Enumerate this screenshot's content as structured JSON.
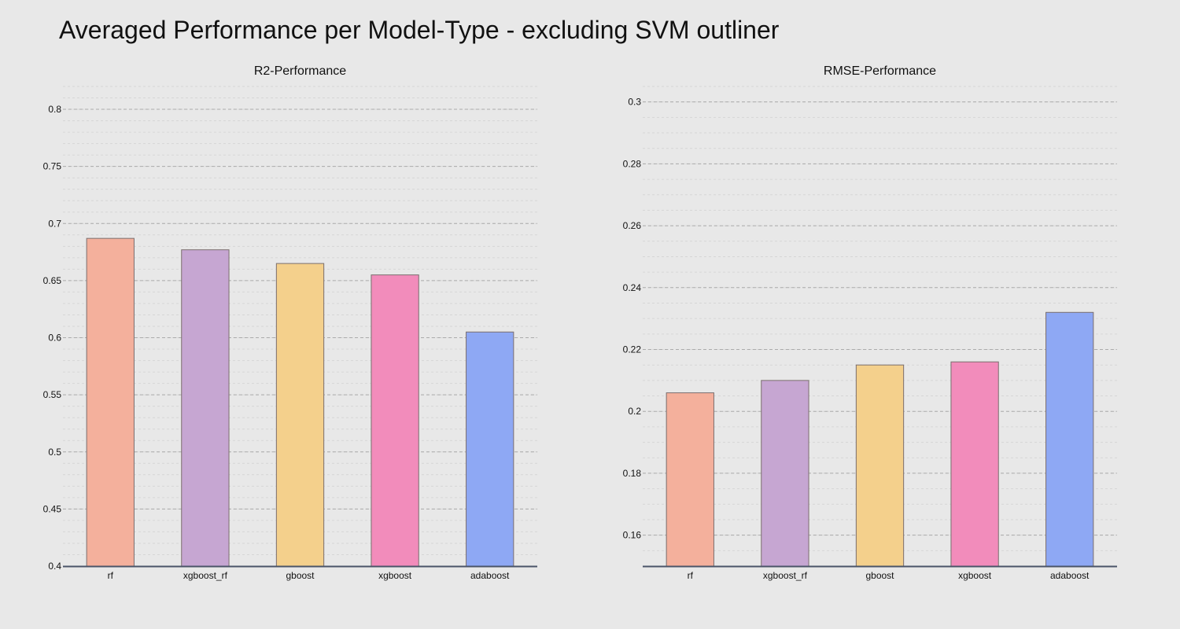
{
  "figure": {
    "title": "Averaged Performance per Model-Type - excluding SVM outliner"
  },
  "chart_data": [
    {
      "type": "bar",
      "title": "R2-Performance",
      "xlabel": "",
      "ylabel": "",
      "categories": [
        "rf",
        "xgboost_rf",
        "gboost",
        "xgboost",
        "adaboost"
      ],
      "values": [
        0.687,
        0.677,
        0.665,
        0.655,
        0.605
      ],
      "colors": [
        "#f4b09c",
        "#c6a6d2",
        "#f4d08c",
        "#f28cbb",
        "#8ea8f4"
      ],
      "ylim": [
        0.4,
        0.82
      ],
      "yticks": [
        0.4,
        0.45,
        0.5,
        0.55,
        0.6,
        0.65,
        0.7,
        0.75,
        0.8
      ],
      "ytick_labels": [
        "0.4",
        "0.45",
        "0.5",
        "0.55",
        "0.6",
        "0.65",
        "0.7",
        "0.75",
        "0.8"
      ],
      "minor_step": 0.01,
      "grid": true,
      "legend": "none"
    },
    {
      "type": "bar",
      "title": "RMSE-Performance",
      "xlabel": "",
      "ylabel": "",
      "categories": [
        "rf",
        "xgboost_rf",
        "gboost",
        "xgboost",
        "adaboost"
      ],
      "values": [
        0.206,
        0.21,
        0.215,
        0.216,
        0.232
      ],
      "colors": [
        "#f4b09c",
        "#c6a6d2",
        "#f4d08c",
        "#f28cbb",
        "#8ea8f4"
      ],
      "ylim": [
        0.15,
        0.305
      ],
      "yticks": [
        0.16,
        0.18,
        0.2,
        0.22,
        0.24,
        0.26,
        0.28,
        0.3
      ],
      "ytick_labels": [
        "0.16",
        "0.18",
        "0.2",
        "0.22",
        "0.24",
        "0.26",
        "0.28",
        "0.3"
      ],
      "minor_step": 0.005,
      "grid": true,
      "legend": "none"
    }
  ]
}
